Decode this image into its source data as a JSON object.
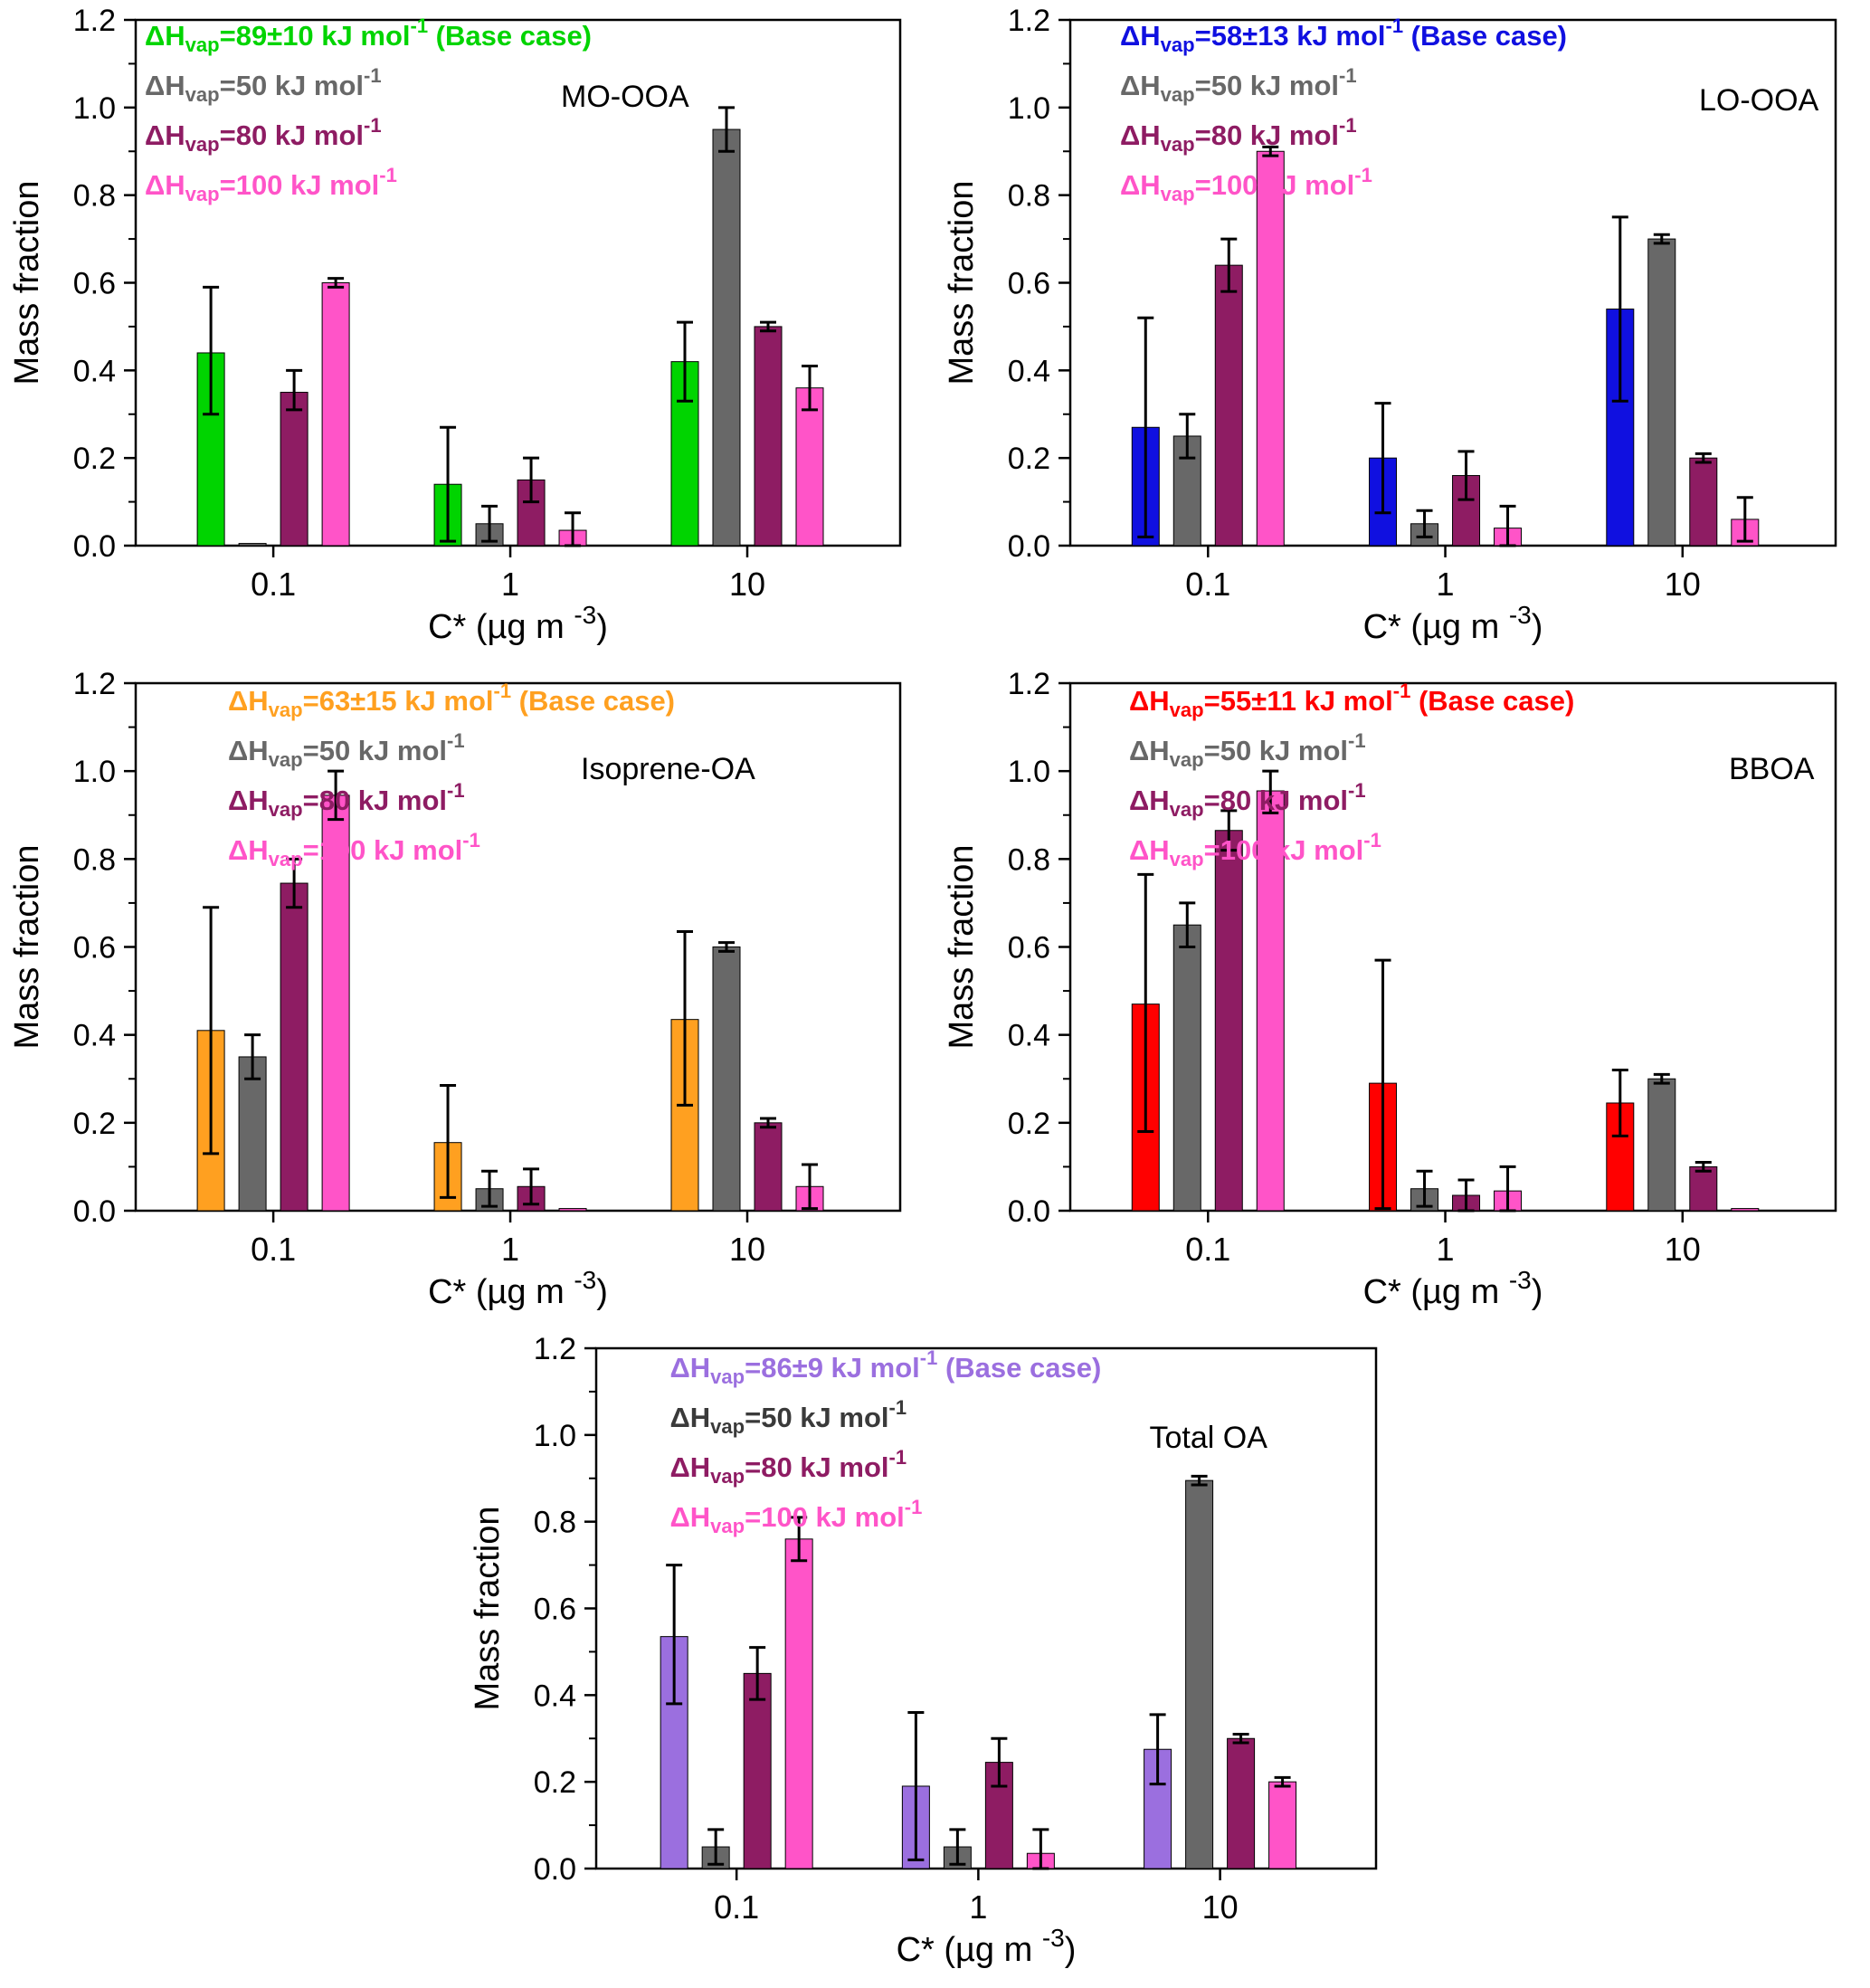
{
  "figure": {
    "ylabel": "Mass fraction",
    "xlabel": {
      "pre": "C* (µg m ",
      "sup": "-3",
      "post": ")"
    },
    "y_ticks": [
      "0.0",
      "0.2",
      "0.4",
      "0.6",
      "0.8",
      "1.0",
      "1.2"
    ],
    "x_ticks": [
      "0.1",
      "1",
      "10"
    ],
    "legend_template": {
      "prefix": "ΔH",
      "sub": "vap",
      "eq": "=",
      "unit": " kJ mol",
      "sup": "-1",
      "base_suffix": " (Base case)"
    }
  },
  "chart_data": [
    {
      "type": "bar",
      "title": "MO-OOA",
      "categories": [
        "0.1",
        "1",
        "10"
      ],
      "ylim": [
        0,
        1.2
      ],
      "legend": [
        {
          "value": "89±10",
          "base_case": true,
          "color": "#00D400"
        },
        {
          "value": "50",
          "color": "#686868"
        },
        {
          "value": "80",
          "color": "#8E1C63"
        },
        {
          "value": "100",
          "color": "#FF54C8"
        }
      ],
      "series": [
        {
          "name": "Base case",
          "color": "#00D400",
          "values": [
            0.44,
            0.14,
            0.42
          ],
          "err_lo": [
            0.14,
            0.13,
            0.09
          ],
          "err_hi": [
            0.15,
            0.13,
            0.09
          ]
        },
        {
          "name": "50 kJ mol-1",
          "color": "#686868",
          "values": [
            0.005,
            0.05,
            0.95
          ],
          "err_lo": [
            0,
            0.04,
            0.05
          ],
          "err_hi": [
            0,
            0.04,
            0.05
          ]
        },
        {
          "name": "80 kJ mol-1",
          "color": "#8E1C63",
          "values": [
            0.35,
            0.15,
            0.5
          ],
          "err_lo": [
            0.04,
            0.05,
            0.01
          ],
          "err_hi": [
            0.05,
            0.05,
            0.01
          ]
        },
        {
          "name": "100 kJ mol-1",
          "color": "#FF54C8",
          "values": [
            0.6,
            0.035,
            0.36
          ],
          "err_lo": [
            0.01,
            0.035,
            0.05
          ],
          "err_hi": [
            0.01,
            0.04,
            0.05
          ]
        }
      ]
    },
    {
      "type": "bar",
      "title": "LO-OOA",
      "categories": [
        "0.1",
        "1",
        "10"
      ],
      "ylim": [
        0,
        1.2
      ],
      "legend": [
        {
          "value": "58±13",
          "base_case": true,
          "color": "#1010E0"
        },
        {
          "value": "50",
          "color": "#686868"
        },
        {
          "value": "80",
          "color": "#8E1C63"
        },
        {
          "value": "100",
          "color": "#FF54C8"
        }
      ],
      "series": [
        {
          "name": "Base case",
          "color": "#1010E0",
          "values": [
            0.27,
            0.2,
            0.54
          ],
          "err_lo": [
            0.25,
            0.125,
            0.21
          ],
          "err_hi": [
            0.25,
            0.125,
            0.21
          ]
        },
        {
          "name": "50 kJ mol-1",
          "color": "#686868",
          "values": [
            0.25,
            0.05,
            0.7
          ],
          "err_lo": [
            0.05,
            0.03,
            0.01
          ],
          "err_hi": [
            0.05,
            0.03,
            0.01
          ]
        },
        {
          "name": "80 kJ mol-1",
          "color": "#8E1C63",
          "values": [
            0.64,
            0.16,
            0.2
          ],
          "err_lo": [
            0.06,
            0.055,
            0.01
          ],
          "err_hi": [
            0.06,
            0.055,
            0.01
          ]
        },
        {
          "name": "100 kJ mol-1",
          "color": "#FF54C8",
          "values": [
            0.9,
            0.04,
            0.06
          ],
          "err_lo": [
            0.01,
            0.04,
            0.05
          ],
          "err_hi": [
            0.01,
            0.05,
            0.05
          ]
        }
      ]
    },
    {
      "type": "bar",
      "title": "Isoprene-OA",
      "categories": [
        "0.1",
        "1",
        "10"
      ],
      "ylim": [
        0,
        1.2
      ],
      "legend": [
        {
          "value": "63±15",
          "base_case": true,
          "color": "#FFA020"
        },
        {
          "value": "50",
          "color": "#686868"
        },
        {
          "value": "80",
          "color": "#8E1C63"
        },
        {
          "value": "100",
          "color": "#FF54C8"
        }
      ],
      "series": [
        {
          "name": "Base case",
          "color": "#FFA020",
          "values": [
            0.41,
            0.155,
            0.435
          ],
          "err_lo": [
            0.28,
            0.125,
            0.195
          ],
          "err_hi": [
            0.28,
            0.13,
            0.2
          ]
        },
        {
          "name": "50 kJ mol-1",
          "color": "#686868",
          "values": [
            0.35,
            0.05,
            0.6
          ],
          "err_lo": [
            0.05,
            0.04,
            0.01
          ],
          "err_hi": [
            0.05,
            0.04,
            0.01
          ]
        },
        {
          "name": "80 kJ mol-1",
          "color": "#8E1C63",
          "values": [
            0.745,
            0.055,
            0.2
          ],
          "err_lo": [
            0.055,
            0.04,
            0.01
          ],
          "err_hi": [
            0.055,
            0.04,
            0.01
          ]
        },
        {
          "name": "100 kJ mol-1",
          "color": "#FF54C8",
          "values": [
            0.945,
            0.005,
            0.055
          ],
          "err_lo": [
            0.055,
            0,
            0.05
          ],
          "err_hi": [
            0.055,
            0,
            0.05
          ]
        }
      ]
    },
    {
      "type": "bar",
      "title": "BBOA",
      "categories": [
        "0.1",
        "1",
        "10"
      ],
      "ylim": [
        0,
        1.2
      ],
      "legend": [
        {
          "value": "55±11",
          "base_case": true,
          "color": "#FF0000"
        },
        {
          "value": "50",
          "color": "#686868"
        },
        {
          "value": "80",
          "color": "#8E1C63"
        },
        {
          "value": "100",
          "color": "#FF54C8"
        }
      ],
      "series": [
        {
          "name": "Base case",
          "color": "#FF0000",
          "values": [
            0.47,
            0.29,
            0.245
          ],
          "err_lo": [
            0.29,
            0.285,
            0.075
          ],
          "err_hi": [
            0.295,
            0.28,
            0.075
          ]
        },
        {
          "name": "50 kJ mol-1",
          "color": "#686868",
          "values": [
            0.65,
            0.05,
            0.3
          ],
          "err_lo": [
            0.05,
            0.04,
            0.01
          ],
          "err_hi": [
            0.05,
            0.04,
            0.01
          ]
        },
        {
          "name": "80 kJ mol-1",
          "color": "#8E1C63",
          "values": [
            0.865,
            0.035,
            0.1
          ],
          "err_lo": [
            0.045,
            0.035,
            0.01
          ],
          "err_hi": [
            0.045,
            0.035,
            0.01
          ]
        },
        {
          "name": "100 kJ mol-1",
          "color": "#FF54C8",
          "values": [
            0.955,
            0.045,
            0.005
          ],
          "err_lo": [
            0.05,
            0.045,
            0
          ],
          "err_hi": [
            0.045,
            0.055,
            0
          ]
        }
      ]
    },
    {
      "type": "bar",
      "title": "Total OA",
      "categories": [
        "0.1",
        "1",
        "10"
      ],
      "ylim": [
        0,
        1.2
      ],
      "legend": [
        {
          "value": "86±9",
          "base_case": true,
          "color": "#9B6FDF"
        },
        {
          "value": "50",
          "color": "#3a3a3a"
        },
        {
          "value": "80",
          "color": "#8E1C63"
        },
        {
          "value": "100",
          "color": "#FF54C8"
        }
      ],
      "series": [
        {
          "name": "Base case",
          "color": "#9B6FDF",
          "values": [
            0.535,
            0.19,
            0.275
          ],
          "err_lo": [
            0.155,
            0.17,
            0.08
          ],
          "err_hi": [
            0.165,
            0.17,
            0.08
          ]
        },
        {
          "name": "50 kJ mol-1",
          "color": "#686868",
          "values": [
            0.05,
            0.05,
            0.895
          ],
          "err_lo": [
            0.04,
            0.04,
            0.01
          ],
          "err_hi": [
            0.04,
            0.04,
            0.01
          ]
        },
        {
          "name": "80 kJ mol-1",
          "color": "#8E1C63",
          "values": [
            0.45,
            0.245,
            0.3
          ],
          "err_lo": [
            0.06,
            0.055,
            0.01
          ],
          "err_hi": [
            0.06,
            0.055,
            0.01
          ]
        },
        {
          "name": "100 kJ mol-1",
          "color": "#FF54C8",
          "values": [
            0.76,
            0.035,
            0.2
          ],
          "err_lo": [
            0.05,
            0.035,
            0.01
          ],
          "err_hi": [
            0.05,
            0.055,
            0.01
          ]
        }
      ]
    }
  ]
}
